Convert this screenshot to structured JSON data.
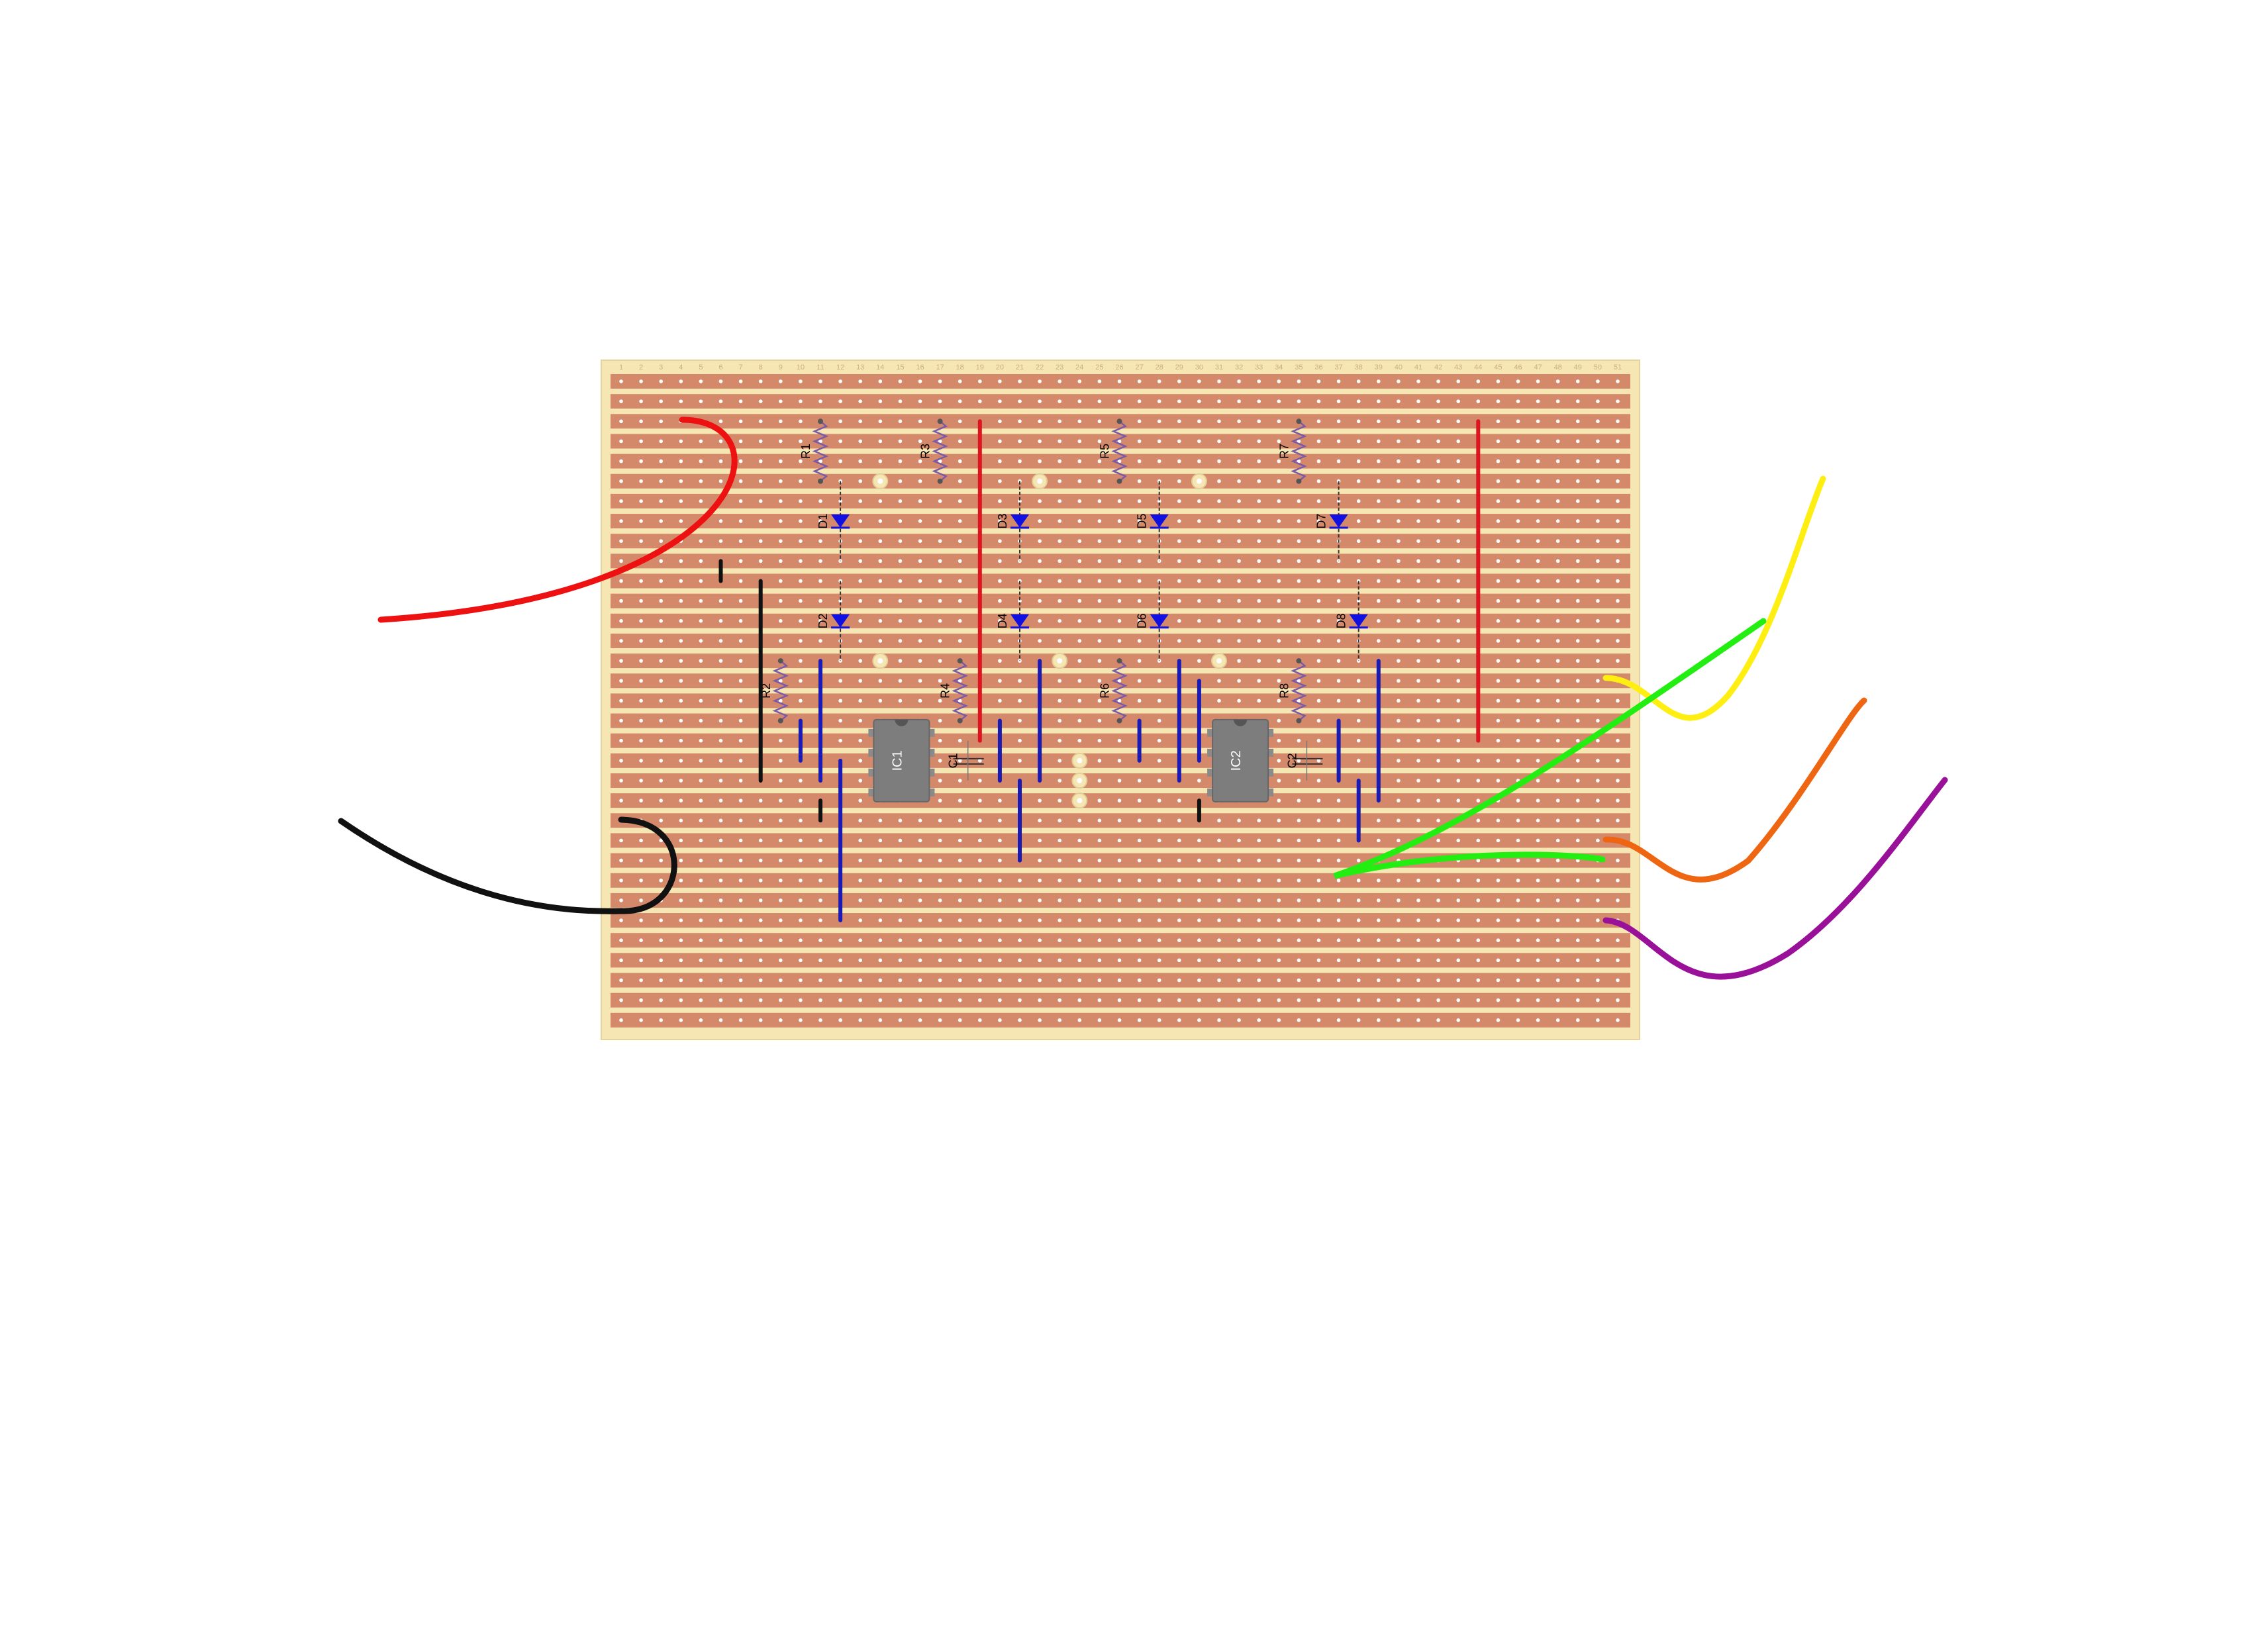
{
  "board": {
    "columns": 51,
    "rows": 33,
    "column_numbers": [
      "1",
      "2",
      "3",
      "4",
      "5",
      "6",
      "7",
      "8",
      "9",
      "10",
      "11",
      "12",
      "13",
      "14",
      "15",
      "16",
      "17",
      "18",
      "19",
      "20",
      "21",
      "22",
      "23",
      "24",
      "25",
      "26",
      "27",
      "28",
      "29",
      "30",
      "31",
      "32",
      "33",
      "34",
      "35",
      "36",
      "37",
      "38",
      "39",
      "40",
      "41",
      "42",
      "43",
      "44",
      "45",
      "46",
      "47",
      "48",
      "49",
      "50",
      "51"
    ],
    "strip_color": "#d4896a",
    "substrate_color": "#f5e6b4",
    "hole_color": "#ffffff"
  },
  "components": {
    "resistors": [
      {
        "label": "R1",
        "col": 11,
        "row_from": 3,
        "row_to": 6
      },
      {
        "label": "R2",
        "col": 9,
        "row_from": 15,
        "row_to": 18
      },
      {
        "label": "R3",
        "col": 17,
        "row_from": 3,
        "row_to": 6
      },
      {
        "label": "R4",
        "col": 18,
        "row_from": 15,
        "row_to": 18
      },
      {
        "label": "R5",
        "col": 26,
        "row_from": 3,
        "row_to": 6
      },
      {
        "label": "R6",
        "col": 26,
        "row_from": 15,
        "row_to": 18
      },
      {
        "label": "R7",
        "col": 35,
        "row_from": 3,
        "row_to": 6
      },
      {
        "label": "R8",
        "col": 35,
        "row_from": 15,
        "row_to": 18
      }
    ],
    "diodes": [
      {
        "label": "D1",
        "col": 12,
        "row_from": 6,
        "row_to": 10
      },
      {
        "label": "D2",
        "col": 12,
        "row_from": 11,
        "row_to": 15
      },
      {
        "label": "D3",
        "col": 21,
        "row_from": 6,
        "row_to": 10
      },
      {
        "label": "D4",
        "col": 21,
        "row_from": 11,
        "row_to": 15
      },
      {
        "label": "D5",
        "col": 28,
        "row_from": 6,
        "row_to": 10
      },
      {
        "label": "D6",
        "col": 28,
        "row_from": 11,
        "row_to": 15
      },
      {
        "label": "D7",
        "col": 37,
        "row_from": 6,
        "row_to": 10
      },
      {
        "label": "D8",
        "col": 38,
        "row_from": 11,
        "row_to": 15
      }
    ],
    "ics": [
      {
        "label": "IC1",
        "col": 15,
        "row": 20
      },
      {
        "label": "IC2",
        "col": 32,
        "row": 20
      }
    ],
    "capacitors": [
      {
        "label": "C1",
        "col": 18,
        "row": 20
      },
      {
        "label": "C2",
        "col": 35,
        "row": 20
      }
    ]
  },
  "links": [
    {
      "color": "#e0141e",
      "col": 19,
      "row_from": 3,
      "row_to": 19
    },
    {
      "color": "#e0141e",
      "col": 44,
      "row_from": 3,
      "row_to": 19
    },
    {
      "color": "#111111",
      "col": 8,
      "row_from": 11,
      "row_to": 21
    },
    {
      "color": "#111111",
      "col": 6,
      "row_from": 10,
      "row_to": 11
    },
    {
      "color": "#111111",
      "col": 11,
      "row_from": 22,
      "row_to": 23
    },
    {
      "color": "#111111",
      "col": 30,
      "row_from": 22,
      "row_to": 23
    },
    {
      "color": "#1a1ab4",
      "col": 11,
      "row_from": 15,
      "row_to": 21
    },
    {
      "color": "#1a1ab4",
      "col": 10,
      "row_from": 18,
      "row_to": 20
    },
    {
      "color": "#1a1ab4",
      "col": 12,
      "row_from": 20,
      "row_to": 28
    },
    {
      "color": "#1a1ab4",
      "col": 20,
      "row_from": 18,
      "row_to": 21
    },
    {
      "color": "#1a1ab4",
      "col": 21,
      "row_from": 21,
      "row_to": 25
    },
    {
      "color": "#1a1ab4",
      "col": 22,
      "row_from": 15,
      "row_to": 21
    },
    {
      "color": "#1a1ab4",
      "col": 27,
      "row_from": 18,
      "row_to": 20
    },
    {
      "color": "#1a1ab4",
      "col": 29,
      "row_from": 15,
      "row_to": 21
    },
    {
      "color": "#1a1ab4",
      "col": 30,
      "row_from": 16,
      "row_to": 20
    },
    {
      "color": "#1a1ab4",
      "col": 37,
      "row_from": 18,
      "row_to": 21
    },
    {
      "color": "#1a1ab4",
      "col": 38,
      "row_from": 21,
      "row_to": 24
    },
    {
      "color": "#1a1ab4",
      "col": 39,
      "row_from": 15,
      "row_to": 22
    }
  ],
  "cuts": [
    {
      "col": 14,
      "row": 6
    },
    {
      "col": 14,
      "row": 15
    },
    {
      "col": 22,
      "row": 6
    },
    {
      "col": 23,
      "row": 15
    },
    {
      "col": 30,
      "row": 6
    },
    {
      "col": 31,
      "row": 15
    },
    {
      "col": 24,
      "row": 20
    },
    {
      "col": 24,
      "row": 21
    },
    {
      "col": 24,
      "row": 22
    }
  ],
  "wires": [
    {
      "name": "red-power-wire",
      "color": "#ee1111"
    },
    {
      "name": "black-ground-wire",
      "color": "#111111"
    },
    {
      "name": "yellow-wire",
      "color": "#ffee11"
    },
    {
      "name": "green-wire",
      "color": "#22ee11"
    },
    {
      "name": "orange-wire",
      "color": "#ee6611"
    },
    {
      "name": "purple-wire",
      "color": "#991199"
    }
  ]
}
